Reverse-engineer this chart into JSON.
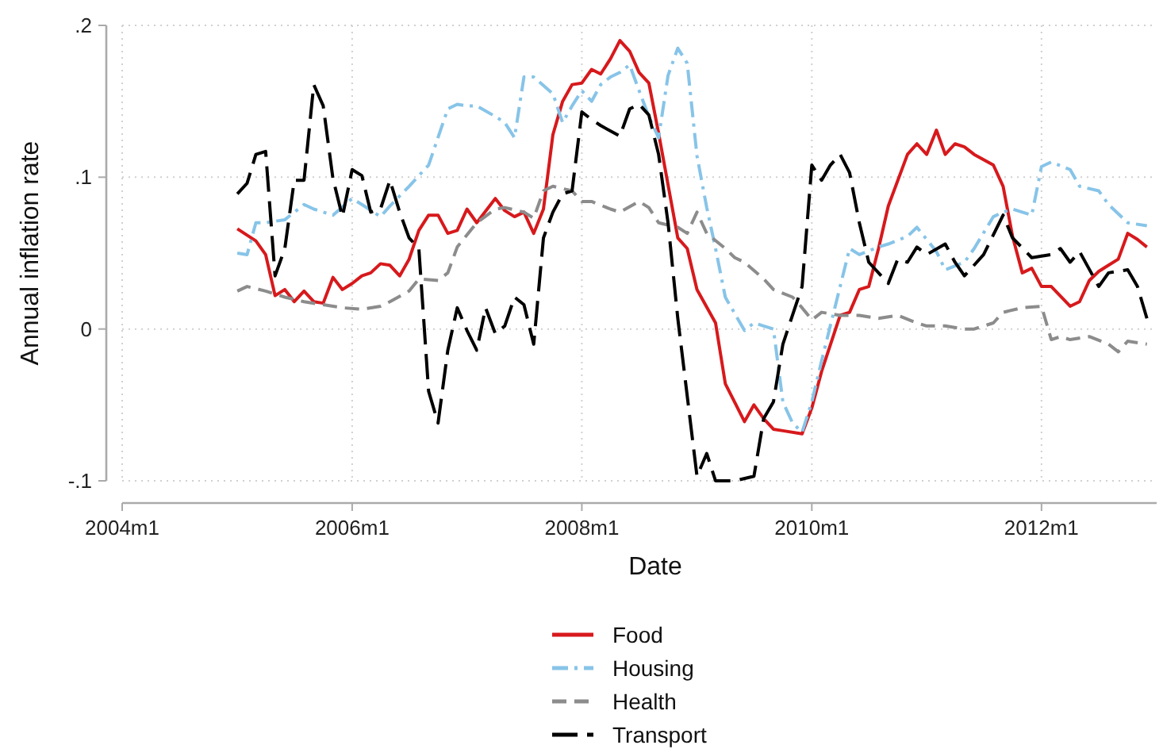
{
  "chart_data": {
    "type": "line",
    "xlabel": "Date",
    "ylabel": "Annual inflation rate",
    "xlim": [
      "2004-01",
      "2013-01"
    ],
    "ylim": [
      -0.1,
      0.2
    ],
    "xticks": [
      {
        "value": "2004-01",
        "label": "2004m1"
      },
      {
        "value": "2006-01",
        "label": "2006m1"
      },
      {
        "value": "2008-01",
        "label": "2008m1"
      },
      {
        "value": "2010-01",
        "label": "2010m1"
      },
      {
        "value": "2012-01",
        "label": "2012m1"
      }
    ],
    "yticks": [
      {
        "value": -0.1,
        "label": "-.1"
      },
      {
        "value": 0,
        "label": "0"
      },
      {
        "value": 0.1,
        "label": ".1"
      },
      {
        "value": 0.2,
        "label": ".2"
      }
    ],
    "grid": true,
    "legend": "bottom",
    "marker": "none",
    "series": [
      {
        "name": "Food",
        "color": "#d7191c",
        "line_style": "solid",
        "x": [
          "2005-01",
          "2005-03",
          "2005-04",
          "2005-05",
          "2005-06",
          "2005-07",
          "2005-08",
          "2005-09",
          "2005-10",
          "2005-11",
          "2005-12",
          "2006-01",
          "2006-02",
          "2006-03",
          "2006-04",
          "2006-05",
          "2006-06",
          "2006-07",
          "2006-08",
          "2006-09",
          "2006-10",
          "2006-11",
          "2006-12",
          "2007-01",
          "2007-02",
          "2007-04",
          "2007-05",
          "2007-06",
          "2007-07",
          "2007-08",
          "2007-09",
          "2007-10",
          "2007-11",
          "2007-12",
          "2008-01",
          "2008-02",
          "2008-03",
          "2008-04",
          "2008-05",
          "2008-06",
          "2008-07",
          "2008-08",
          "2008-09",
          "2008-11",
          "2008-12",
          "2009-01",
          "2009-03",
          "2009-04",
          "2009-06",
          "2009-07",
          "2009-08",
          "2009-09",
          "2009-10",
          "2009-12",
          "2010-01",
          "2010-02",
          "2010-04",
          "2010-05",
          "2010-06",
          "2010-07",
          "2010-08",
          "2010-09",
          "2010-11",
          "2010-12",
          "2011-01",
          "2011-02",
          "2011-03",
          "2011-04",
          "2011-05",
          "2011-06",
          "2011-08",
          "2011-09",
          "2011-10",
          "2011-11",
          "2011-12",
          "2012-01",
          "2012-02",
          "2012-04",
          "2012-05",
          "2012-06",
          "2012-07",
          "2012-08",
          "2012-09",
          "2012-10",
          "2012-11",
          "2012-12"
        ],
        "values": [
          0.066,
          0.058,
          0.049,
          0.022,
          0.026,
          0.018,
          0.025,
          0.018,
          0.017,
          0.034,
          0.026,
          0.03,
          0.035,
          0.037,
          0.043,
          0.042,
          0.035,
          0.046,
          0.065,
          0.075,
          0.075,
          0.063,
          0.065,
          0.079,
          0.07,
          0.086,
          0.078,
          0.074,
          0.077,
          0.063,
          0.079,
          0.128,
          0.15,
          0.161,
          0.162,
          0.171,
          0.168,
          0.178,
          0.19,
          0.183,
          0.169,
          0.162,
          0.129,
          0.06,
          0.053,
          0.026,
          0.004,
          -0.036,
          -0.061,
          -0.05,
          -0.059,
          -0.066,
          -0.067,
          -0.069,
          -0.052,
          -0.028,
          0.009,
          0.011,
          0.026,
          0.028,
          0.053,
          0.081,
          0.115,
          0.122,
          0.115,
          0.131,
          0.115,
          0.122,
          0.12,
          0.115,
          0.108,
          0.094,
          0.061,
          0.037,
          0.04,
          0.028,
          0.028,
          0.015,
          0.018,
          0.032,
          0.038,
          0.042,
          0.046,
          0.063,
          0.059,
          0.054
        ]
      },
      {
        "name": "Housing",
        "color": "#87c4e8",
        "line_style": "dashdot",
        "x": [
          "2005-01",
          "2005-02",
          "2005-03",
          "2005-04",
          "2005-06",
          "2005-08",
          "2005-09",
          "2005-11",
          "2006-01",
          "2006-02",
          "2006-04",
          "2006-05",
          "2006-07",
          "2006-08",
          "2006-09",
          "2006-11",
          "2006-12",
          "2007-01",
          "2007-02",
          "2007-04",
          "2007-05",
          "2007-06",
          "2007-07",
          "2007-08",
          "2007-10",
          "2007-11",
          "2007-12",
          "2008-01",
          "2008-02",
          "2008-03",
          "2008-04",
          "2008-05",
          "2008-06",
          "2008-07",
          "2008-08",
          "2008-09",
          "2008-10",
          "2008-11",
          "2008-12",
          "2009-01",
          "2009-02",
          "2009-03",
          "2009-04",
          "2009-06",
          "2009-07",
          "2009-08",
          "2009-09",
          "2009-10",
          "2009-11",
          "2009-12",
          "2010-01",
          "2010-02",
          "2010-04",
          "2010-05",
          "2010-06",
          "2010-08",
          "2010-09",
          "2010-11",
          "2010-12",
          "2011-02",
          "2011-03",
          "2011-05",
          "2011-06",
          "2011-08",
          "2011-09",
          "2011-10",
          "2011-12",
          "2012-01",
          "2012-02",
          "2012-04",
          "2012-05",
          "2012-07",
          "2012-08",
          "2012-10",
          "2012-12"
        ],
        "values": [
          0.05,
          0.049,
          0.07,
          0.07,
          0.072,
          0.082,
          0.079,
          0.075,
          0.086,
          0.082,
          0.074,
          0.081,
          0.094,
          0.101,
          0.108,
          0.145,
          0.148,
          0.147,
          0.147,
          0.14,
          0.136,
          0.126,
          0.166,
          0.166,
          0.155,
          0.136,
          0.147,
          0.157,
          0.15,
          0.161,
          0.166,
          0.169,
          0.174,
          0.157,
          0.14,
          0.126,
          0.167,
          0.185,
          0.175,
          0.114,
          0.08,
          0.053,
          0.021,
          -0.001,
          0.004,
          0.002,
          0.0,
          -0.048,
          -0.062,
          -0.068,
          -0.048,
          -0.021,
          0.028,
          0.053,
          0.049,
          0.054,
          0.056,
          0.061,
          0.067,
          0.051,
          0.039,
          0.044,
          0.053,
          0.074,
          0.077,
          0.079,
          0.075,
          0.107,
          0.11,
          0.105,
          0.094,
          0.091,
          0.082,
          0.07,
          0.068
        ]
      },
      {
        "name": "Health",
        "color": "#8c8c8c",
        "line_style": "dashed",
        "x": [
          "2005-01",
          "2005-02",
          "2005-04",
          "2005-06",
          "2005-08",
          "2005-10",
          "2005-12",
          "2006-02",
          "2006-04",
          "2006-05",
          "2006-07",
          "2006-08",
          "2006-10",
          "2006-11",
          "2006-12",
          "2007-02",
          "2007-04",
          "2007-05",
          "2007-07",
          "2007-08",
          "2007-09",
          "2007-10",
          "2007-12",
          "2008-01",
          "2008-02",
          "2008-04",
          "2008-05",
          "2008-07",
          "2008-08",
          "2008-09",
          "2008-11",
          "2008-12",
          "2009-01",
          "2009-02",
          "2009-04",
          "2009-05",
          "2009-06",
          "2009-08",
          "2009-09",
          "2009-11",
          "2009-12",
          "2010-01",
          "2010-02",
          "2010-04",
          "2010-06",
          "2010-08",
          "2010-10",
          "2010-12",
          "2011-01",
          "2011-03",
          "2011-05",
          "2011-06",
          "2011-08",
          "2011-09",
          "2011-11",
          "2012-01",
          "2012-02",
          "2012-03",
          "2012-04",
          "2012-06",
          "2012-08",
          "2012-09",
          "2012-10",
          "2012-12"
        ],
        "values": [
          0.025,
          0.028,
          0.025,
          0.021,
          0.018,
          0.016,
          0.014,
          0.013,
          0.015,
          0.018,
          0.025,
          0.033,
          0.032,
          0.037,
          0.054,
          0.07,
          0.079,
          0.08,
          0.077,
          0.073,
          0.091,
          0.094,
          0.091,
          0.084,
          0.084,
          0.079,
          0.077,
          0.084,
          0.08,
          0.07,
          0.067,
          0.063,
          0.077,
          0.063,
          0.053,
          0.047,
          0.044,
          0.033,
          0.026,
          0.021,
          0.014,
          0.006,
          0.011,
          0.009,
          0.009,
          0.007,
          0.009,
          0.004,
          0.002,
          0.002,
          0.0,
          0.0,
          0.004,
          0.011,
          0.014,
          0.015,
          -0.007,
          -0.005,
          -0.007,
          -0.005,
          -0.01,
          -0.015,
          -0.008,
          -0.01
        ]
      },
      {
        "name": "Transport",
        "color": "#000000",
        "line_style": "longdash",
        "x": [
          "2005-01",
          "2005-02",
          "2005-03",
          "2005-04",
          "2005-05",
          "2005-06",
          "2005-07",
          "2005-08",
          "2005-09",
          "2005-10",
          "2005-11",
          "2005-12",
          "2006-01",
          "2006-02",
          "2006-03",
          "2006-04",
          "2006-05",
          "2006-06",
          "2006-07",
          "2006-08",
          "2006-09",
          "2006-10",
          "2006-11",
          "2006-12",
          "2007-01",
          "2007-02",
          "2007-03",
          "2007-04",
          "2007-05",
          "2007-06",
          "2007-07",
          "2007-08",
          "2007-09",
          "2007-10",
          "2007-11",
          "2007-12",
          "2008-01",
          "2008-02",
          "2008-03",
          "2008-05",
          "2008-06",
          "2008-07",
          "2008-08",
          "2008-09",
          "2008-10",
          "2008-11",
          "2009-01",
          "2009-02",
          "2009-03",
          "2009-05",
          "2009-07",
          "2009-08",
          "2009-09",
          "2009-10",
          "2009-12",
          "2010-01",
          "2010-02",
          "2010-03",
          "2010-04",
          "2010-05",
          "2010-06",
          "2010-07",
          "2010-09",
          "2010-10",
          "2010-11",
          "2010-12",
          "2011-01",
          "2011-03",
          "2011-04",
          "2011-05",
          "2011-07",
          "2011-09",
          "2011-10",
          "2011-12",
          "2012-02",
          "2012-03",
          "2012-04",
          "2012-05",
          "2012-07",
          "2012-08",
          "2012-10",
          "2012-11",
          "2012-12"
        ],
        "values": [
          0.089,
          0.096,
          0.115,
          0.117,
          0.035,
          0.053,
          0.098,
          0.098,
          0.161,
          0.147,
          0.099,
          0.074,
          0.105,
          0.101,
          0.077,
          0.079,
          0.098,
          0.077,
          0.06,
          0.053,
          -0.041,
          -0.062,
          -0.014,
          0.014,
          -0.001,
          -0.014,
          0.014,
          -0.003,
          0.002,
          0.021,
          0.016,
          -0.01,
          0.06,
          0.077,
          0.089,
          0.091,
          0.143,
          0.138,
          0.134,
          0.127,
          0.145,
          0.148,
          0.141,
          0.115,
          0.07,
          0.007,
          -0.097,
          -0.082,
          -0.1,
          -0.1,
          -0.097,
          -0.059,
          -0.048,
          -0.01,
          0.028,
          0.108,
          0.098,
          0.108,
          0.115,
          0.103,
          0.07,
          0.044,
          0.03,
          0.046,
          0.044,
          0.054,
          0.049,
          0.056,
          0.044,
          0.035,
          0.049,
          0.075,
          0.06,
          0.047,
          0.049,
          0.053,
          0.044,
          0.051,
          0.028,
          0.037,
          0.039,
          0.028,
          0.007
        ]
      }
    ]
  }
}
